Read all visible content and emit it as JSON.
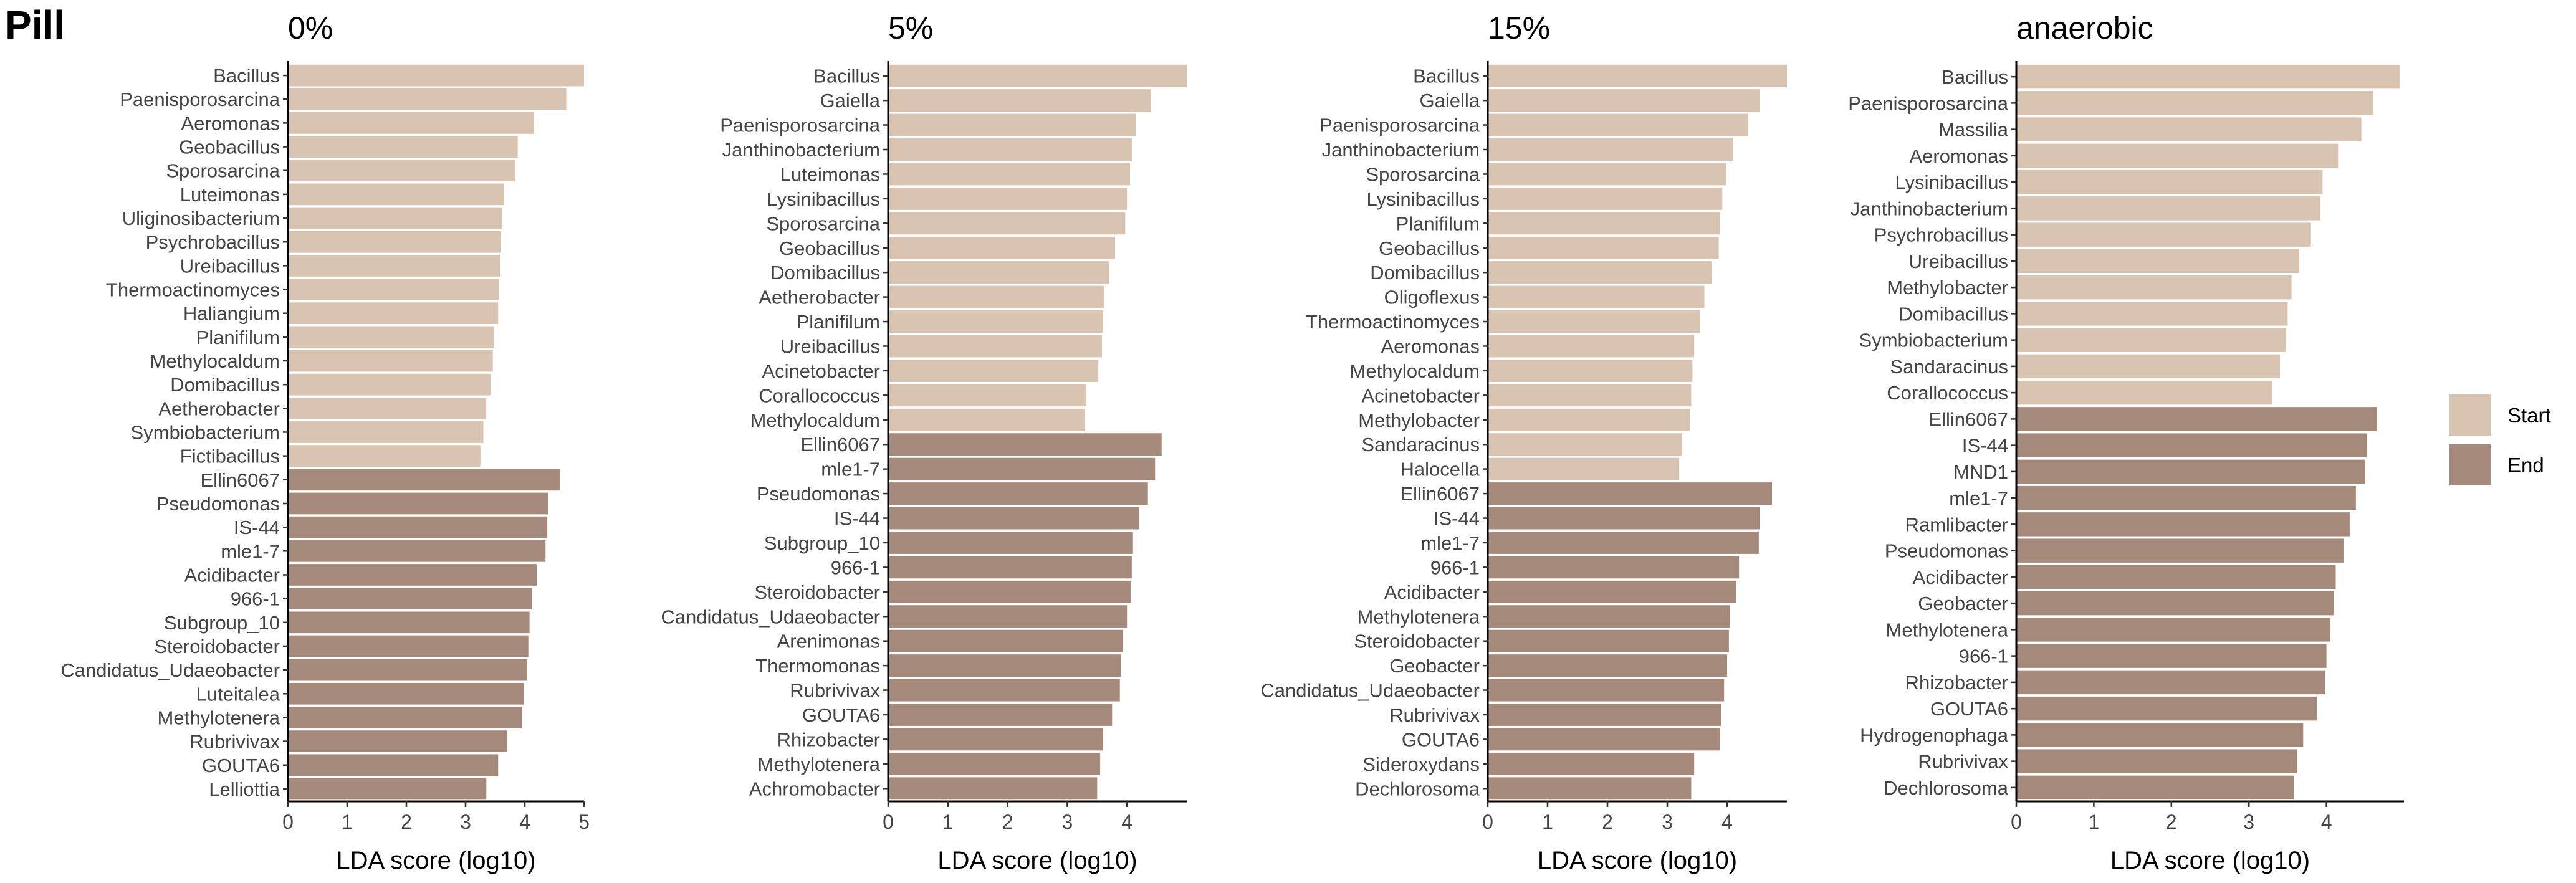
{
  "figure_title": "Pill",
  "colors": {
    "start": "#d8c4b1",
    "end": "#a58a7b"
  },
  "legend": [
    {
      "key": "start",
      "label": "Start"
    },
    {
      "key": "end",
      "label": "End"
    }
  ],
  "chart_data": [
    {
      "type": "bar",
      "orientation": "horizontal",
      "title": "0%",
      "xlabel": "LDA score (log10)",
      "xlim": [
        0,
        5
      ],
      "xticks": [
        0,
        1,
        2,
        3,
        4,
        5
      ],
      "bars": [
        {
          "label": "Bacillus",
          "value": 5.0,
          "group": "start"
        },
        {
          "label": "Paenisporosarcina",
          "value": 4.7,
          "group": "start"
        },
        {
          "label": "Aeromonas",
          "value": 4.15,
          "group": "start"
        },
        {
          "label": "Geobacillus",
          "value": 3.88,
          "group": "start"
        },
        {
          "label": "Sporosarcina",
          "value": 3.84,
          "group": "start"
        },
        {
          "label": "Luteimonas",
          "value": 3.65,
          "group": "start"
        },
        {
          "label": "Uliginosibacterium",
          "value": 3.62,
          "group": "start"
        },
        {
          "label": "Psychrobacillus",
          "value": 3.6,
          "group": "start"
        },
        {
          "label": "Ureibacillus",
          "value": 3.58,
          "group": "start"
        },
        {
          "label": "Thermoactinomyces",
          "value": 3.56,
          "group": "start"
        },
        {
          "label": "Haliangium",
          "value": 3.55,
          "group": "start"
        },
        {
          "label": "Planifilum",
          "value": 3.48,
          "group": "start"
        },
        {
          "label": "Methylocaldum",
          "value": 3.46,
          "group": "start"
        },
        {
          "label": "Domibacillus",
          "value": 3.42,
          "group": "start"
        },
        {
          "label": "Aetherobacter",
          "value": 3.35,
          "group": "start"
        },
        {
          "label": "Symbiobacterium",
          "value": 3.3,
          "group": "start"
        },
        {
          "label": "Fictibacillus",
          "value": 3.25,
          "group": "start"
        },
        {
          "label": "Ellin6067",
          "value": 4.6,
          "group": "end"
        },
        {
          "label": "Pseudomonas",
          "value": 4.4,
          "group": "end"
        },
        {
          "label": "IS-44",
          "value": 4.38,
          "group": "end"
        },
        {
          "label": "mle1-7",
          "value": 4.35,
          "group": "end"
        },
        {
          "label": "Acidibacter",
          "value": 4.2,
          "group": "end"
        },
        {
          "label": "966-1",
          "value": 4.12,
          "group": "end"
        },
        {
          "label": "Subgroup_10",
          "value": 4.08,
          "group": "end"
        },
        {
          "label": "Steroidobacter",
          "value": 4.06,
          "group": "end"
        },
        {
          "label": "Candidatus_Udaeobacter",
          "value": 4.04,
          "group": "end"
        },
        {
          "label": "Luteitalea",
          "value": 3.98,
          "group": "end"
        },
        {
          "label": "Methylotenera",
          "value": 3.95,
          "group": "end"
        },
        {
          "label": "Rubrivivax",
          "value": 3.7,
          "group": "end"
        },
        {
          "label": "GOUTA6",
          "value": 3.55,
          "group": "end"
        },
        {
          "label": "Lelliottia",
          "value": 3.35,
          "group": "end"
        }
      ]
    },
    {
      "type": "bar",
      "orientation": "horizontal",
      "title": "5%",
      "xlabel": "LDA score (log10)",
      "xlim": [
        0,
        5
      ],
      "xticks": [
        0,
        1,
        2,
        3,
        4
      ],
      "bars": [
        {
          "label": "Bacillus",
          "value": 5.0,
          "group": "start"
        },
        {
          "label": "Gaiella",
          "value": 4.4,
          "group": "start"
        },
        {
          "label": "Paenisporosarcina",
          "value": 4.15,
          "group": "start"
        },
        {
          "label": "Janthinobacterium",
          "value": 4.08,
          "group": "start"
        },
        {
          "label": "Luteimonas",
          "value": 4.05,
          "group": "start"
        },
        {
          "label": "Lysinibacillus",
          "value": 4.0,
          "group": "start"
        },
        {
          "label": "Sporosarcina",
          "value": 3.97,
          "group": "start"
        },
        {
          "label": "Geobacillus",
          "value": 3.8,
          "group": "start"
        },
        {
          "label": "Domibacillus",
          "value": 3.7,
          "group": "start"
        },
        {
          "label": "Aetherobacter",
          "value": 3.62,
          "group": "start"
        },
        {
          "label": "Planifilum",
          "value": 3.6,
          "group": "start"
        },
        {
          "label": "Ureibacillus",
          "value": 3.58,
          "group": "start"
        },
        {
          "label": "Acinetobacter",
          "value": 3.52,
          "group": "start"
        },
        {
          "label": "Corallococcus",
          "value": 3.32,
          "group": "start"
        },
        {
          "label": "Methylocaldum",
          "value": 3.3,
          "group": "start"
        },
        {
          "label": "Ellin6067",
          "value": 4.58,
          "group": "end"
        },
        {
          "label": "mle1-7",
          "value": 4.47,
          "group": "end"
        },
        {
          "label": "Pseudomonas",
          "value": 4.35,
          "group": "end"
        },
        {
          "label": "IS-44",
          "value": 4.2,
          "group": "end"
        },
        {
          "label": "Subgroup_10",
          "value": 4.1,
          "group": "end"
        },
        {
          "label": "966-1",
          "value": 4.08,
          "group": "end"
        },
        {
          "label": "Steroidobacter",
          "value": 4.06,
          "group": "end"
        },
        {
          "label": "Candidatus_Udaeobacter",
          "value": 4.0,
          "group": "end"
        },
        {
          "label": "Arenimonas",
          "value": 3.93,
          "group": "end"
        },
        {
          "label": "Thermomonas",
          "value": 3.9,
          "group": "end"
        },
        {
          "label": "Rubrivivax",
          "value": 3.88,
          "group": "end"
        },
        {
          "label": "GOUTA6",
          "value": 3.75,
          "group": "end"
        },
        {
          "label": "Rhizobacter",
          "value": 3.6,
          "group": "end"
        },
        {
          "label": "Methylotenera",
          "value": 3.55,
          "group": "end"
        },
        {
          "label": "Achromobacter",
          "value": 3.5,
          "group": "end"
        }
      ]
    },
    {
      "type": "bar",
      "orientation": "horizontal",
      "title": "15%",
      "xlabel": "LDA score (log10)",
      "xlim": [
        0,
        5
      ],
      "xticks": [
        0,
        1,
        2,
        3,
        4
      ],
      "bars": [
        {
          "label": "Bacillus",
          "value": 5.0,
          "group": "start"
        },
        {
          "label": "Gaiella",
          "value": 4.55,
          "group": "start"
        },
        {
          "label": "Paenisporosarcina",
          "value": 4.35,
          "group": "start"
        },
        {
          "label": "Janthinobacterium",
          "value": 4.1,
          "group": "start"
        },
        {
          "label": "Sporosarcina",
          "value": 3.98,
          "group": "start"
        },
        {
          "label": "Lysinibacillus",
          "value": 3.92,
          "group": "start"
        },
        {
          "label": "Planifilum",
          "value": 3.88,
          "group": "start"
        },
        {
          "label": "Geobacillus",
          "value": 3.86,
          "group": "start"
        },
        {
          "label": "Domibacillus",
          "value": 3.75,
          "group": "start"
        },
        {
          "label": "Oligoflexus",
          "value": 3.62,
          "group": "start"
        },
        {
          "label": "Thermoactinomyces",
          "value": 3.55,
          "group": "start"
        },
        {
          "label": "Aeromonas",
          "value": 3.45,
          "group": "start"
        },
        {
          "label": "Methylocaldum",
          "value": 3.42,
          "group": "start"
        },
        {
          "label": "Acinetobacter",
          "value": 3.4,
          "group": "start"
        },
        {
          "label": "Methylobacter",
          "value": 3.38,
          "group": "start"
        },
        {
          "label": "Sandaracinus",
          "value": 3.25,
          "group": "start"
        },
        {
          "label": "Halocella",
          "value": 3.2,
          "group": "start"
        },
        {
          "label": "Ellin6067",
          "value": 4.75,
          "group": "end"
        },
        {
          "label": "IS-44",
          "value": 4.55,
          "group": "end"
        },
        {
          "label": "mle1-7",
          "value": 4.53,
          "group": "end"
        },
        {
          "label": "966-1",
          "value": 4.2,
          "group": "end"
        },
        {
          "label": "Acidibacter",
          "value": 4.15,
          "group": "end"
        },
        {
          "label": "Methylotenera",
          "value": 4.05,
          "group": "end"
        },
        {
          "label": "Steroidobacter",
          "value": 4.03,
          "group": "end"
        },
        {
          "label": "Geobacter",
          "value": 4.0,
          "group": "end"
        },
        {
          "label": "Candidatus_Udaeobacter",
          "value": 3.95,
          "group": "end"
        },
        {
          "label": "Rubrivivax",
          "value": 3.9,
          "group": "end"
        },
        {
          "label": "GOUTA6",
          "value": 3.88,
          "group": "end"
        },
        {
          "label": "Sideroxydans",
          "value": 3.45,
          "group": "end"
        },
        {
          "label": "Dechlorosoma",
          "value": 3.4,
          "group": "end"
        }
      ]
    },
    {
      "type": "bar",
      "orientation": "horizontal",
      "title": "anaerobic",
      "xlabel": "LDA score (log10)",
      "xlim": [
        0,
        5
      ],
      "xticks": [
        0,
        1,
        2,
        3,
        4
      ],
      "bars": [
        {
          "label": "Bacillus",
          "value": 4.95,
          "group": "start"
        },
        {
          "label": "Paenisporosarcina",
          "value": 4.6,
          "group": "start"
        },
        {
          "label": "Massilia",
          "value": 4.45,
          "group": "start"
        },
        {
          "label": "Aeromonas",
          "value": 4.15,
          "group": "start"
        },
        {
          "label": "Lysinibacillus",
          "value": 3.95,
          "group": "start"
        },
        {
          "label": "Janthinobacterium",
          "value": 3.92,
          "group": "start"
        },
        {
          "label": "Psychrobacillus",
          "value": 3.8,
          "group": "start"
        },
        {
          "label": "Ureibacillus",
          "value": 3.65,
          "group": "start"
        },
        {
          "label": "Methylobacter",
          "value": 3.55,
          "group": "start"
        },
        {
          "label": "Domibacillus",
          "value": 3.5,
          "group": "start"
        },
        {
          "label": "Symbiobacterium",
          "value": 3.48,
          "group": "start"
        },
        {
          "label": "Sandaracinus",
          "value": 3.4,
          "group": "start"
        },
        {
          "label": "Corallococcus",
          "value": 3.3,
          "group": "start"
        },
        {
          "label": "Ellin6067",
          "value": 4.65,
          "group": "end"
        },
        {
          "label": "IS-44",
          "value": 4.52,
          "group": "end"
        },
        {
          "label": "MND1",
          "value": 4.5,
          "group": "end"
        },
        {
          "label": "mle1-7",
          "value": 4.38,
          "group": "end"
        },
        {
          "label": "Ramlibacter",
          "value": 4.3,
          "group": "end"
        },
        {
          "label": "Pseudomonas",
          "value": 4.22,
          "group": "end"
        },
        {
          "label": "Acidibacter",
          "value": 4.12,
          "group": "end"
        },
        {
          "label": "Geobacter",
          "value": 4.1,
          "group": "end"
        },
        {
          "label": "Methylotenera",
          "value": 4.05,
          "group": "end"
        },
        {
          "label": "966-1",
          "value": 4.0,
          "group": "end"
        },
        {
          "label": "Rhizobacter",
          "value": 3.98,
          "group": "end"
        },
        {
          "label": "GOUTA6",
          "value": 3.88,
          "group": "end"
        },
        {
          "label": "Hydrogenophaga",
          "value": 3.7,
          "group": "end"
        },
        {
          "label": "Rubrivivax",
          "value": 3.62,
          "group": "end"
        },
        {
          "label": "Dechlorosoma",
          "value": 3.58,
          "group": "end"
        }
      ]
    }
  ]
}
